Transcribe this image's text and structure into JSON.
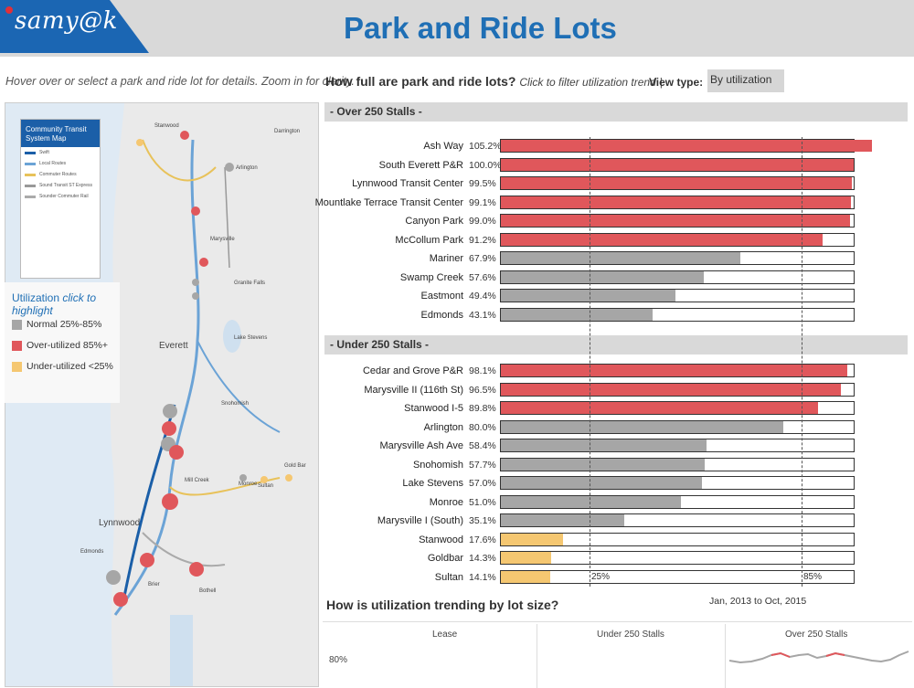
{
  "header": {
    "logo_text": "samy@k",
    "title": "Park and Ride Lots"
  },
  "left": {
    "instructions": "Hover over or select a park and ride lot for details. Zoom in for clarity.",
    "map_legend": {
      "title": "Community Transit System Map",
      "lines": [
        {
          "label": "Swift",
          "color": "#1b5fa8"
        },
        {
          "label": "Local Routes",
          "color": "#6ba3d6"
        },
        {
          "label": "Commuter Routes",
          "color": "#e8c25a"
        },
        {
          "label": "Sound Transit ST Express",
          "color": "#999999"
        },
        {
          "label": "Sounder Commuter Rail",
          "color": "#aaaaaa"
        }
      ]
    },
    "utilization_legend": {
      "title": "Utilization",
      "hint": "click to highlight",
      "items": [
        {
          "label": "Normal 25%-85%",
          "color": "#a6a6a6"
        },
        {
          "label": "Over-utilized 85%+",
          "color": "#e0575b"
        },
        {
          "label": "Under-utilized <25%",
          "color": "#f5c771"
        }
      ]
    },
    "map_labels": [
      "Stanwood",
      "Darrington",
      "Arlington",
      "Marysville",
      "Granite Falls",
      "Lake Stevens",
      "Everett",
      "Snohomish",
      "Monroe",
      "Sultan",
      "Gold Bar",
      "Lynnwood",
      "Edmonds",
      "Brier",
      "Bothell",
      "Mill Creek"
    ]
  },
  "main": {
    "question": "How full are park and ride lots?",
    "question_hint": "Click to filter utilization trend",
    "separator": "|",
    "view_type_label": "View type:",
    "view_type_value": "By utilization",
    "sections": [
      {
        "title": "- Over 250 Stalls -",
        "rows": [
          {
            "name": "Ash Way",
            "pct": "105.2%",
            "value": 105.2
          },
          {
            "name": "South Everett P&R",
            "pct": "100.0%",
            "value": 100.0
          },
          {
            "name": "Lynnwood Transit Center",
            "pct": "99.5%",
            "value": 99.5
          },
          {
            "name": "Mountlake Terrace Transit Center",
            "pct": "99.1%",
            "value": 99.1
          },
          {
            "name": "Canyon Park",
            "pct": "99.0%",
            "value": 99.0
          },
          {
            "name": "McCollum Park",
            "pct": "91.2%",
            "value": 91.2
          },
          {
            "name": "Mariner",
            "pct": "67.9%",
            "value": 67.9
          },
          {
            "name": "Swamp Creek",
            "pct": "57.6%",
            "value": 57.6
          },
          {
            "name": "Eastmont",
            "pct": "49.4%",
            "value": 49.4
          },
          {
            "name": "Edmonds",
            "pct": "43.1%",
            "value": 43.1
          }
        ]
      },
      {
        "title": "- Under 250 Stalls -",
        "rows": [
          {
            "name": "Cedar and Grove P&R",
            "pct": "98.1%",
            "value": 98.1
          },
          {
            "name": "Marysville II (116th St)",
            "pct": "96.5%",
            "value": 96.5
          },
          {
            "name": "Stanwood I-5",
            "pct": "89.8%",
            "value": 89.8
          },
          {
            "name": "Arlington",
            "pct": "80.0%",
            "value": 80.0
          },
          {
            "name": "Marysville Ash Ave",
            "pct": "58.4%",
            "value": 58.4
          },
          {
            "name": "Snohomish",
            "pct": "57.7%",
            "value": 57.7
          },
          {
            "name": "Lake Stevens",
            "pct": "57.0%",
            "value": 57.0
          },
          {
            "name": "Monroe",
            "pct": "51.0%",
            "value": 51.0
          },
          {
            "name": "Marysville I (South)",
            "pct": "35.1%",
            "value": 35.1
          },
          {
            "name": "Stanwood",
            "pct": "17.6%",
            "value": 17.6
          },
          {
            "name": "Goldbar",
            "pct": "14.3%",
            "value": 14.3
          },
          {
            "name": "Sultan",
            "pct": "14.1%",
            "value": 14.1
          }
        ]
      }
    ],
    "ref_lines": [
      {
        "label": "25%",
        "value": 25
      },
      {
        "label": "85%",
        "value": 85
      }
    ],
    "colors": {
      "over": "#e0575b",
      "normal": "#a6a6a6",
      "under": "#f5c771"
    }
  },
  "trend": {
    "title": "How is utilization trending by lot size?",
    "range": "Jan, 2013 to Oct, 2015",
    "columns": [
      "Lease",
      "Under 250 Stalls",
      "Over 250 Stalls"
    ],
    "y_tick": "80%"
  }
}
